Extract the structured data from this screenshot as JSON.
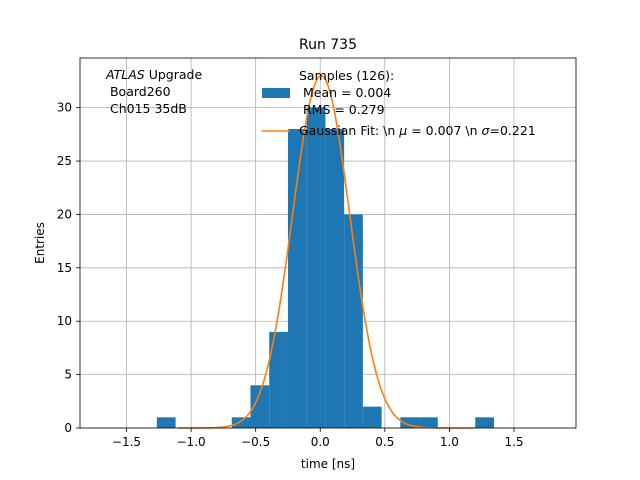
{
  "chart_data": {
    "type": "bar",
    "title": "Run 735",
    "xlabel": "time [ns]",
    "ylabel": "Entries",
    "xlim": [
      -1.86,
      1.98
    ],
    "ylim": [
      0,
      34.65
    ],
    "grid": true,
    "xticks": [
      -1.5,
      -1.0,
      -0.5,
      0.0,
      0.5,
      1.0,
      1.5
    ],
    "xtick_labels": [
      "−1.5",
      "−1.0",
      "−0.5",
      "0.0",
      "0.5",
      "1.0",
      "1.5"
    ],
    "yticks": [
      0,
      5,
      10,
      15,
      20,
      25,
      30
    ],
    "ytick_labels": [
      "0",
      "5",
      "10",
      "15",
      "20",
      "25",
      "30"
    ],
    "annotation": {
      "italic": "ATLAS",
      "line1_rest": " Upgrade",
      "line2": " Board260",
      "line3": " Ch015 35dB"
    },
    "legend": {
      "placement": "top-center",
      "entries": [
        {
          "kind": "patch",
          "color": "#1f77b4",
          "lines": [
            "Samples (126):",
            " Mean = 0.004",
            " RMS = 0.279"
          ]
        },
        {
          "kind": "line",
          "color": "#ff7f0e",
          "prefix": "Gaussian Fit: \\n ",
          "mu_symbol": "μ",
          "mu_value": " = 0.007 \\n ",
          "sigma_symbol": "σ",
          "sigma_value": "=0.221"
        }
      ]
    },
    "series": [
      {
        "name": "Samples (126)",
        "type": "histogram",
        "color": "#1f77b4",
        "bin_width": 0.145,
        "bins": [
          {
            "x0": -1.265,
            "x1": -1.12,
            "count": 1
          },
          {
            "x0": -0.685,
            "x1": -0.54,
            "count": 1
          },
          {
            "x0": -0.54,
            "x1": -0.395,
            "count": 4
          },
          {
            "x0": -0.395,
            "x1": -0.25,
            "count": 9
          },
          {
            "x0": -0.25,
            "x1": -0.105,
            "count": 28
          },
          {
            "x0": -0.105,
            "x1": 0.04,
            "count": 30
          },
          {
            "x0": 0.04,
            "x1": 0.185,
            "count": 28
          },
          {
            "x0": 0.185,
            "x1": 0.33,
            "count": 20
          },
          {
            "x0": 0.33,
            "x1": 0.475,
            "count": 2
          },
          {
            "x0": 0.62,
            "x1": 0.765,
            "count": 1
          },
          {
            "x0": 0.765,
            "x1": 0.91,
            "count": 1
          },
          {
            "x0": 1.2,
            "x1": 1.345,
            "count": 1
          }
        ]
      },
      {
        "name": "Gaussian Fit",
        "type": "line",
        "color": "#ff7f0e",
        "amplitude": 33.0,
        "mu": 0.007,
        "sigma": 0.221,
        "x_range": [
          -1.1,
          1.2
        ]
      }
    ]
  }
}
